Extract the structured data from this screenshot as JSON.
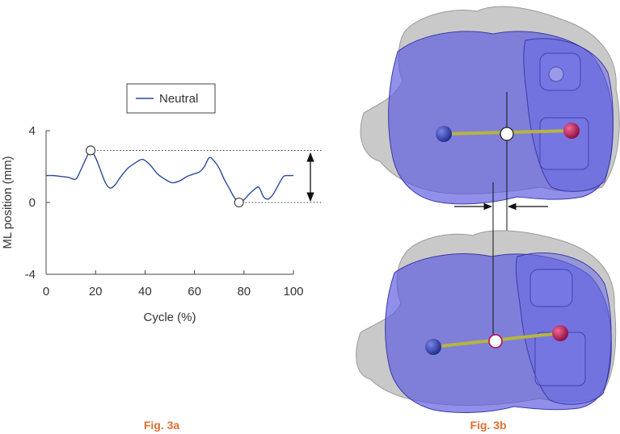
{
  "chart_data": {
    "type": "line",
    "xlabel": "Cycle (%)",
    "ylabel": "ML position (mm)",
    "xlim": [
      0,
      100
    ],
    "ylim": [
      -4,
      4
    ],
    "xticks": [
      0,
      20,
      40,
      60,
      80,
      100
    ],
    "yticks": [
      -4,
      0,
      4
    ],
    "grid": false,
    "legend_position": "top-center",
    "series": [
      {
        "name": "Neutral",
        "color": "#2b4a9a",
        "x": [
          0,
          3,
          6,
          9,
          12,
          14,
          16,
          18,
          20,
          22,
          24,
          26,
          28,
          30,
          33,
          36,
          39,
          42,
          45,
          48,
          51,
          54,
          57,
          60,
          62,
          64,
          66,
          68,
          70,
          72,
          74,
          76,
          78,
          80,
          82,
          84,
          86,
          88,
          90,
          92,
          94,
          96,
          98,
          100
        ],
        "y": [
          1.5,
          1.5,
          1.45,
          1.4,
          1.3,
          1.8,
          2.4,
          2.9,
          2.5,
          1.8,
          1.1,
          0.8,
          1.0,
          1.4,
          1.9,
          2.2,
          2.4,
          2.1,
          1.6,
          1.3,
          1.1,
          1.2,
          1.45,
          1.6,
          1.7,
          2.0,
          2.5,
          2.3,
          1.9,
          1.3,
          0.8,
          0.3,
          0.0,
          0.15,
          0.45,
          0.7,
          0.85,
          0.3,
          0.2,
          0.5,
          1.0,
          1.45,
          1.5,
          1.5
        ]
      }
    ],
    "markers": [
      {
        "x": 18,
        "y": 2.9
      },
      {
        "x": 78,
        "y": 0.0
      }
    ]
  },
  "captions": {
    "fig_a": "Fig. 3a",
    "fig_b": "Fig. 3b"
  },
  "colors": {
    "caption": "#e07030",
    "bone": "#c8c8c8",
    "implant": "#5a5ad8",
    "medial_ball": "#2a3aa8",
    "lateral_ball": "#b0104a",
    "rod": "#b8b440"
  }
}
